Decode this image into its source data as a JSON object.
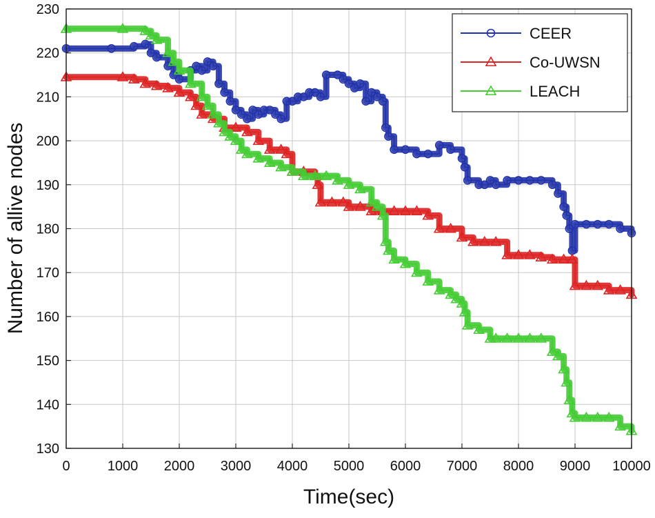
{
  "chart_data": {
    "type": "line",
    "title": "",
    "xlabel": "Time(sec)",
    "ylabel": "Number of allive nodes",
    "xlim": [
      0,
      10000
    ],
    "ylim": [
      130,
      230
    ],
    "xticks": [
      0,
      1000,
      2000,
      3000,
      4000,
      5000,
      6000,
      7000,
      8000,
      9000,
      10000
    ],
    "yticks": [
      130,
      140,
      150,
      160,
      170,
      180,
      190,
      200,
      210,
      220,
      230
    ],
    "xtick_labels": [
      "0",
      "1000",
      "2000",
      "3000",
      "4000",
      "5000",
      "6000",
      "7000",
      "8000",
      "9000",
      "10000"
    ],
    "ytick_labels": [
      "130",
      "140",
      "150",
      "160",
      "170",
      "180",
      "190",
      "200",
      "210",
      "220",
      "230"
    ],
    "grid": true,
    "legend_position": "top-right",
    "series": [
      {
        "name": "CEER",
        "color": "#2233aa",
        "marker": "circle",
        "points": [
          [
            0,
            221
          ],
          [
            800,
            221
          ],
          [
            1200,
            221.5
          ],
          [
            1400,
            222
          ],
          [
            1500,
            220
          ],
          [
            1600,
            219
          ],
          [
            1800,
            217
          ],
          [
            1900,
            215
          ],
          [
            2000,
            214
          ],
          [
            2200,
            216
          ],
          [
            2300,
            217
          ],
          [
            2400,
            216
          ],
          [
            2500,
            218
          ],
          [
            2600,
            217
          ],
          [
            2700,
            213
          ],
          [
            2800,
            211
          ],
          [
            2900,
            209
          ],
          [
            3000,
            207
          ],
          [
            3100,
            206
          ],
          [
            3200,
            205
          ],
          [
            3300,
            207
          ],
          [
            3400,
            206
          ],
          [
            3500,
            207
          ],
          [
            3600,
            207
          ],
          [
            3700,
            206
          ],
          [
            3800,
            205
          ],
          [
            3900,
            209
          ],
          [
            4000,
            209
          ],
          [
            4100,
            210
          ],
          [
            4200,
            210
          ],
          [
            4300,
            211
          ],
          [
            4400,
            211
          ],
          [
            4500,
            210
          ],
          [
            4600,
            215
          ],
          [
            4800,
            215
          ],
          [
            4900,
            214
          ],
          [
            5000,
            213
          ],
          [
            5100,
            212
          ],
          [
            5200,
            213
          ],
          [
            5300,
            209
          ],
          [
            5400,
            211
          ],
          [
            5500,
            210
          ],
          [
            5600,
            209
          ],
          [
            5650,
            203
          ],
          [
            5700,
            201
          ],
          [
            5800,
            198
          ],
          [
            6000,
            198
          ],
          [
            6200,
            197
          ],
          [
            6400,
            197
          ],
          [
            6600,
            199
          ],
          [
            6800,
            198
          ],
          [
            7000,
            196
          ],
          [
            7050,
            194
          ],
          [
            7100,
            191
          ],
          [
            7300,
            190
          ],
          [
            7400,
            190
          ],
          [
            7500,
            191
          ],
          [
            7600,
            190
          ],
          [
            7800,
            191
          ],
          [
            8000,
            191
          ],
          [
            8200,
            191
          ],
          [
            8400,
            191
          ],
          [
            8600,
            190
          ],
          [
            8700,
            188
          ],
          [
            8800,
            185
          ],
          [
            8850,
            183
          ],
          [
            8900,
            180
          ],
          [
            8950,
            175
          ],
          [
            9000,
            181
          ],
          [
            9200,
            181
          ],
          [
            9400,
            181
          ],
          [
            9600,
            181
          ],
          [
            9800,
            180
          ],
          [
            10000,
            179
          ]
        ]
      },
      {
        "name": "Co-UWSN",
        "color": "#dd2222",
        "marker": "triangle",
        "points": [
          [
            0,
            214.5
          ],
          [
            1000,
            214.5
          ],
          [
            1200,
            214
          ],
          [
            1400,
            213
          ],
          [
            1600,
            212.5
          ],
          [
            1800,
            212
          ],
          [
            2000,
            211
          ],
          [
            2200,
            210
          ],
          [
            2300,
            208
          ],
          [
            2400,
            206
          ],
          [
            2600,
            205
          ],
          [
            2800,
            203
          ],
          [
            3000,
            203
          ],
          [
            3200,
            202
          ],
          [
            3400,
            200
          ],
          [
            3600,
            198
          ],
          [
            3800,
            198
          ],
          [
            3900,
            197
          ],
          [
            4000,
            193
          ],
          [
            4200,
            193
          ],
          [
            4400,
            192
          ],
          [
            4450,
            190
          ],
          [
            4500,
            186
          ],
          [
            4700,
            186
          ],
          [
            4900,
            186
          ],
          [
            5000,
            185
          ],
          [
            5200,
            185
          ],
          [
            5400,
            184
          ],
          [
            5600,
            184
          ],
          [
            5800,
            184
          ],
          [
            6000,
            184
          ],
          [
            6200,
            184
          ],
          [
            6400,
            183
          ],
          [
            6600,
            180
          ],
          [
            6800,
            180
          ],
          [
            7000,
            178
          ],
          [
            7200,
            177
          ],
          [
            7400,
            177
          ],
          [
            7600,
            177
          ],
          [
            7800,
            174
          ],
          [
            8000,
            174
          ],
          [
            8200,
            174
          ],
          [
            8400,
            173.5
          ],
          [
            8600,
            173
          ],
          [
            8800,
            173
          ],
          [
            8950,
            173
          ],
          [
            9000,
            167
          ],
          [
            9200,
            167
          ],
          [
            9400,
            167
          ],
          [
            9600,
            166
          ],
          [
            9800,
            166
          ],
          [
            10000,
            165
          ]
        ]
      },
      {
        "name": "LEACH",
        "color": "#44cc33",
        "marker": "triangle",
        "points": [
          [
            0,
            225.5
          ],
          [
            1000,
            225.5
          ],
          [
            1400,
            225
          ],
          [
            1500,
            224
          ],
          [
            1600,
            223
          ],
          [
            1800,
            220
          ],
          [
            1900,
            218
          ],
          [
            2000,
            216
          ],
          [
            2200,
            213
          ],
          [
            2400,
            210
          ],
          [
            2500,
            208
          ],
          [
            2600,
            206
          ],
          [
            2700,
            204
          ],
          [
            2800,
            202
          ],
          [
            2900,
            201
          ],
          [
            3000,
            200
          ],
          [
            3100,
            198
          ],
          [
            3200,
            197
          ],
          [
            3400,
            196
          ],
          [
            3600,
            195
          ],
          [
            3800,
            194
          ],
          [
            4000,
            193
          ],
          [
            4200,
            192
          ],
          [
            4400,
            192
          ],
          [
            4600,
            192
          ],
          [
            4800,
            191
          ],
          [
            5000,
            190
          ],
          [
            5200,
            189
          ],
          [
            5400,
            186
          ],
          [
            5500,
            185
          ],
          [
            5600,
            183
          ],
          [
            5650,
            177
          ],
          [
            5700,
            175
          ],
          [
            5800,
            173
          ],
          [
            6000,
            172
          ],
          [
            6200,
            170
          ],
          [
            6400,
            168
          ],
          [
            6600,
            166
          ],
          [
            6800,
            165
          ],
          [
            6900,
            164
          ],
          [
            7000,
            163
          ],
          [
            7050,
            161
          ],
          [
            7100,
            158
          ],
          [
            7300,
            157
          ],
          [
            7500,
            155
          ],
          [
            7600,
            155
          ],
          [
            7800,
            155
          ],
          [
            8000,
            155
          ],
          [
            8200,
            155
          ],
          [
            8400,
            155
          ],
          [
            8600,
            152
          ],
          [
            8700,
            151
          ],
          [
            8800,
            148
          ],
          [
            8850,
            145
          ],
          [
            8900,
            141
          ],
          [
            8950,
            138
          ],
          [
            9000,
            137
          ],
          [
            9200,
            137
          ],
          [
            9400,
            137
          ],
          [
            9600,
            137
          ],
          [
            9800,
            135
          ],
          [
            10000,
            134
          ]
        ]
      }
    ]
  }
}
